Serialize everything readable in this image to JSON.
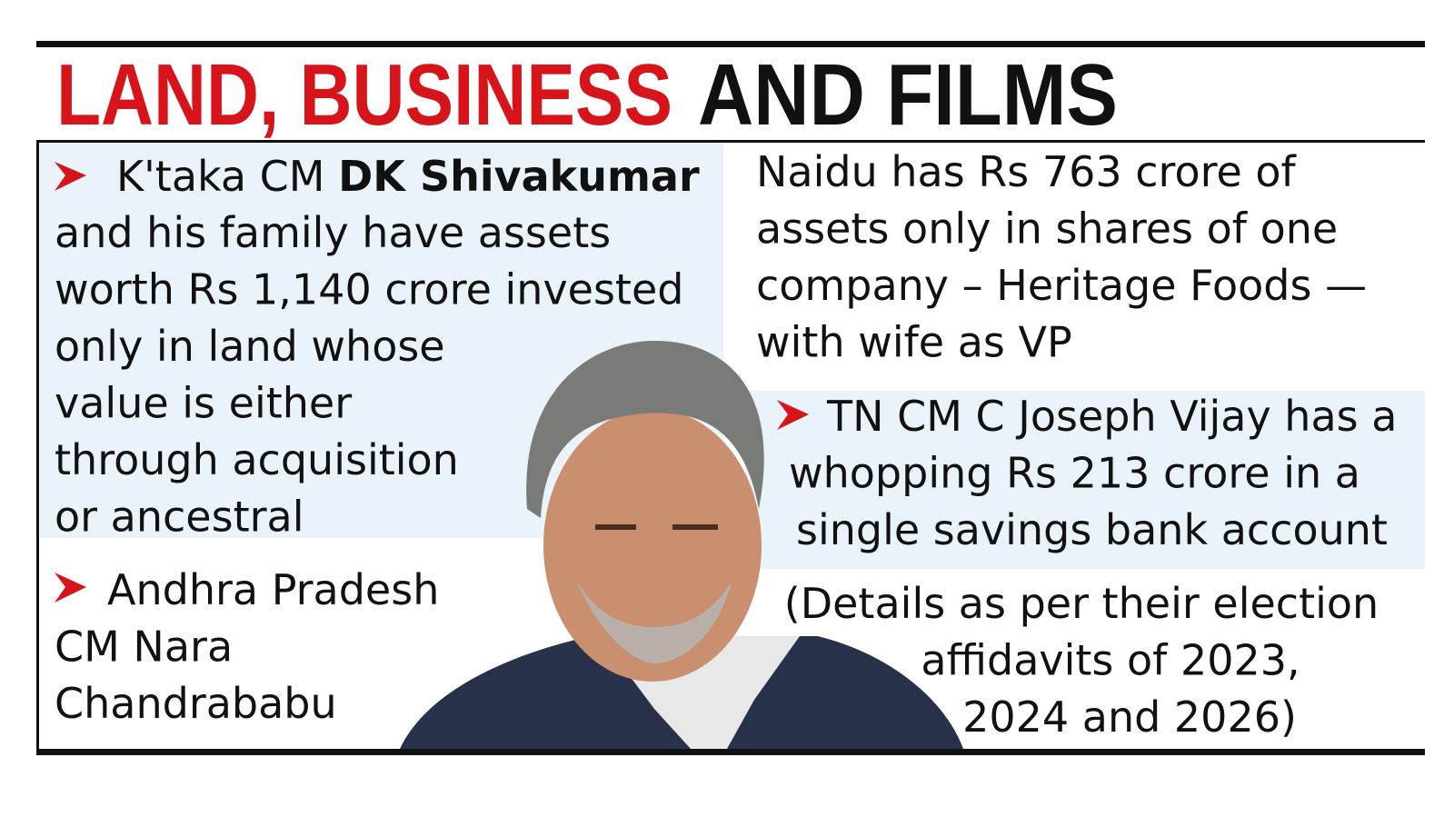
{
  "header": {
    "title_red": "LAND, BUSINESS",
    "title_black": "AND FILMS"
  },
  "items": [
    {
      "lead": "K'taka CM",
      "name": "DK Shivakumar",
      "lines": [
        "and his family have assets",
        "worth Rs 1,140 crore invested",
        "only in land whose",
        "value is either",
        "through acquisition",
        "or ancestral"
      ]
    },
    {
      "lines": [
        "Andhra Pradesh",
        "CM Nara",
        "Chandrababu"
      ],
      "continued": [
        "Naidu has Rs 763 crore of",
        "assets only in shares of one",
        "company – Heritage Foods —",
        "with wife as VP"
      ]
    },
    {
      "lines": [
        "TN CM C Joseph Vijay has a",
        "whopping Rs 213 crore in a",
        "single savings bank account"
      ]
    }
  ],
  "note": [
    "(Details as per their election",
    "affidavits of 2023,",
    "2024 and 2026)"
  ]
}
